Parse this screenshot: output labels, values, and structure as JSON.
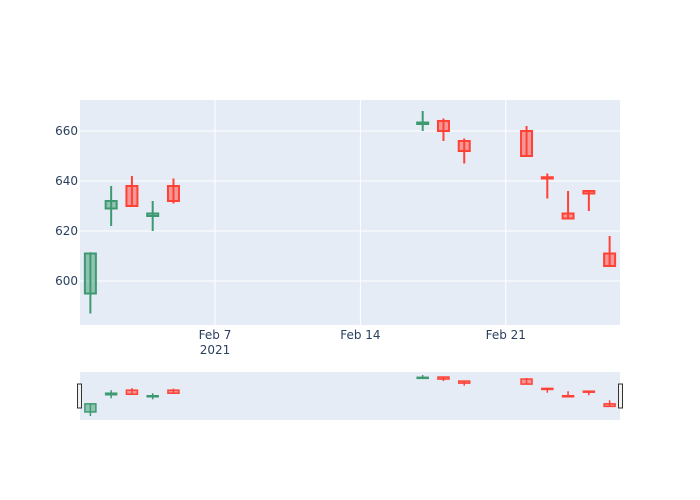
{
  "chart_data": {
    "type": "candlestick",
    "title": "",
    "xlabel": "",
    "ylabel": "",
    "x_range": [
      "2021-01-31 12:00",
      "2021-02-26 12:00"
    ],
    "ylim": [
      582.4,
      672.4
    ],
    "grid": true,
    "legend": "none",
    "rangeslider": true,
    "colors": {
      "increasing": "#3D9970",
      "decreasing": "#FF4136",
      "plot_bg": "#E5ECF6",
      "grid": "#ffffff"
    },
    "x_ticks": [
      {
        "date": "2021-02-07",
        "label": "Feb 7",
        "sublabel": "2021"
      },
      {
        "date": "2021-02-14",
        "label": "Feb 14",
        "sublabel": ""
      },
      {
        "date": "2021-02-21",
        "label": "Feb 21",
        "sublabel": ""
      }
    ],
    "y_ticks": [
      600,
      620,
      640,
      660
    ],
    "candles": [
      {
        "date": "2021-02-01",
        "open": 595,
        "high": 611.5,
        "low": 587,
        "close": 611
      },
      {
        "date": "2021-02-02",
        "open": 629,
        "high": 638,
        "low": 622,
        "close": 632
      },
      {
        "date": "2021-02-03",
        "open": 638,
        "high": 642,
        "low": 630,
        "close": 630
      },
      {
        "date": "2021-02-04",
        "open": 626,
        "high": 632,
        "low": 620,
        "close": 627
      },
      {
        "date": "2021-02-05",
        "open": 638,
        "high": 641,
        "low": 631,
        "close": 632
      },
      {
        "date": "2021-02-17",
        "open": 662.8,
        "high": 668,
        "low": 660,
        "close": 663.4
      },
      {
        "date": "2021-02-18",
        "open": 664,
        "high": 665,
        "low": 656,
        "close": 660
      },
      {
        "date": "2021-02-19",
        "open": 656,
        "high": 657,
        "low": 647,
        "close": 652
      },
      {
        "date": "2021-02-22",
        "open": 660,
        "high": 662,
        "low": 650,
        "close": 650
      },
      {
        "date": "2021-02-23",
        "open": 641.5,
        "high": 643,
        "low": 633,
        "close": 641
      },
      {
        "date": "2021-02-24",
        "open": 627,
        "high": 636,
        "low": 625,
        "close": 625
      },
      {
        "date": "2021-02-25",
        "open": 636,
        "high": 636,
        "low": 628,
        "close": 635
      },
      {
        "date": "2021-02-26",
        "open": 611,
        "high": 618,
        "low": 606,
        "close": 606
      }
    ]
  }
}
